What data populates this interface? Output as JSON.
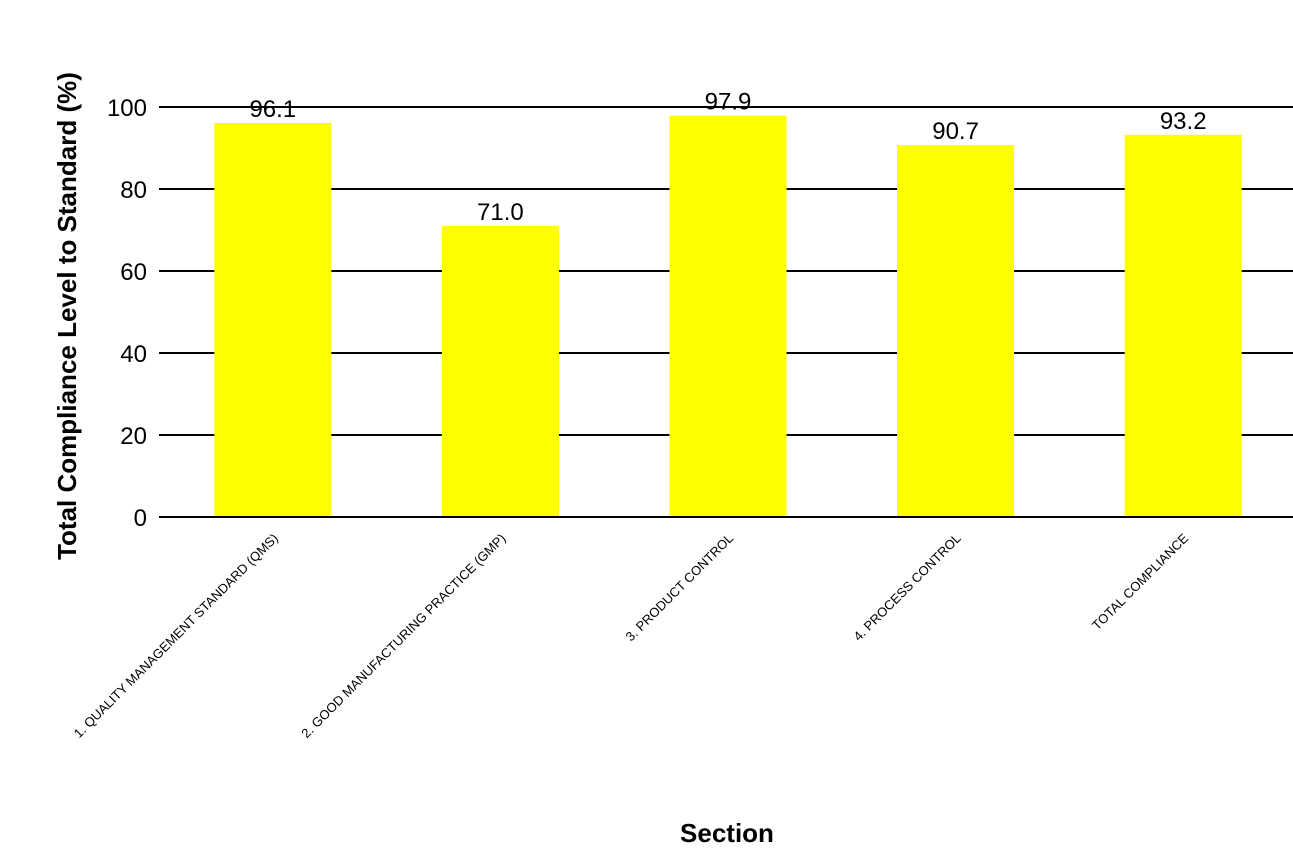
{
  "chart_data": {
    "type": "bar",
    "title": "",
    "xlabel": "Section",
    "ylabel": "Total Compliance Level to Standard (%)",
    "ylim": [
      0,
      100
    ],
    "yticks": [
      0,
      20,
      40,
      60,
      80,
      100
    ],
    "categories": [
      "1. QUALITY MANAGEMENT STANDARD (QMS)",
      "2. GOOD MANUFACTURING PRACTICE (GMP)",
      "3. PRODUCT CONTROL",
      "4. PROCESS CONTROL",
      "TOTAL COMPLIANCE"
    ],
    "values": [
      96.1,
      71.0,
      97.9,
      90.7,
      93.2
    ],
    "value_labels": [
      "96.1",
      "71.0",
      "97.9",
      "90.7",
      "93.2"
    ],
    "grid": true,
    "legend": "none",
    "bar_color": "#ffff00",
    "grid_color": "#000000"
  }
}
